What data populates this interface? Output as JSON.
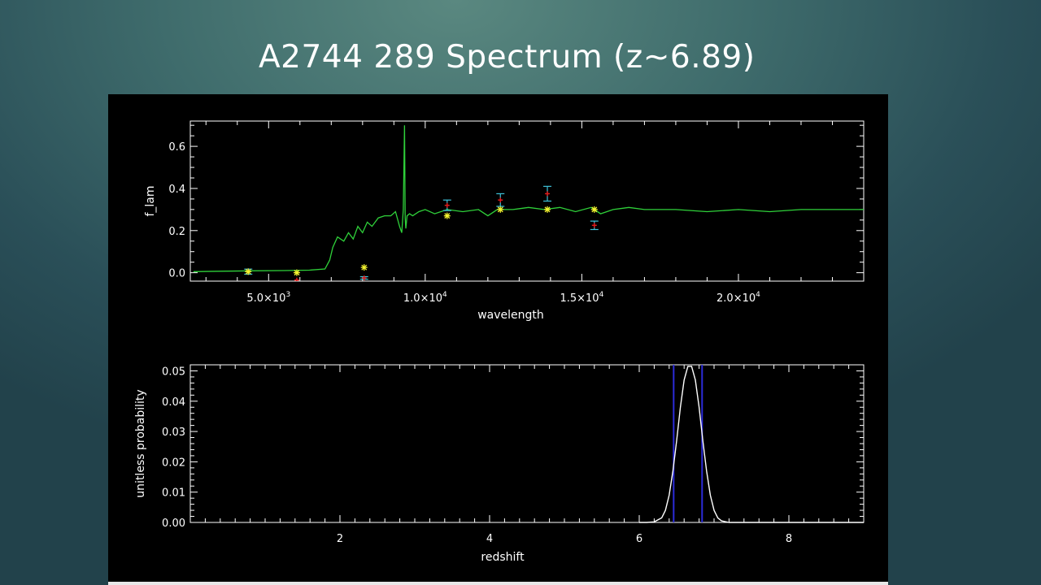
{
  "slide": {
    "title": "A2744 289 Spectrum (z~6.89)"
  },
  "colors": {
    "background_light": "#5a8880",
    "background_dark": "#22424b",
    "plot_background": "#000000",
    "axes": "#ffffff",
    "spectrum": "#2fd13a",
    "observed_points": "#e01a1a",
    "error_bars": "#3ec1d8",
    "model_points": "#f4f430",
    "pdf_curve": "#ffffff",
    "bounds": "#2b2bd8"
  },
  "chart_data": [
    {
      "type": "line",
      "xlabel": "wavelength",
      "ylabel": "f_lam",
      "xlim": [
        2500,
        24000
      ],
      "ylim": [
        -0.04,
        0.72
      ],
      "xticks": [
        {
          "value": 5000,
          "mant": "5.0",
          "exp": "3"
        },
        {
          "value": 10000,
          "mant": "1.0",
          "exp": "4"
        },
        {
          "value": 15000,
          "mant": "1.5",
          "exp": "4"
        },
        {
          "value": 20000,
          "mant": "2.0",
          "exp": "4"
        }
      ],
      "yticks": [
        "0.0",
        "0.2",
        "0.4",
        "0.6"
      ],
      "series": [
        {
          "kind": "model_spectrum",
          "x": [
            2600,
            3500,
            4500,
            5500,
            6300,
            6800,
            6950,
            7050,
            7200,
            7400,
            7550,
            7700,
            7850,
            8000,
            8150,
            8300,
            8500,
            8700,
            8900,
            9050,
            9180,
            9250,
            9300,
            9340,
            9360,
            9380,
            9420,
            9500,
            9600,
            9800,
            10000,
            10300,
            10700,
            11200,
            11700,
            12000,
            12300,
            12800,
            13300,
            13800,
            14300,
            14800,
            15300,
            15600,
            16000,
            16500,
            17000,
            18000,
            19000,
            20000,
            21000,
            22000,
            23000,
            24000
          ],
          "y": [
            0.005,
            0.007,
            0.009,
            0.01,
            0.012,
            0.018,
            0.06,
            0.12,
            0.17,
            0.15,
            0.19,
            0.16,
            0.22,
            0.19,
            0.24,
            0.22,
            0.26,
            0.27,
            0.27,
            0.29,
            0.22,
            0.19,
            0.3,
            0.7,
            0.26,
            0.21,
            0.27,
            0.28,
            0.27,
            0.29,
            0.3,
            0.28,
            0.3,
            0.29,
            0.3,
            0.27,
            0.3,
            0.3,
            0.31,
            0.3,
            0.31,
            0.29,
            0.31,
            0.28,
            0.3,
            0.31,
            0.3,
            0.3,
            0.29,
            0.3,
            0.29,
            0.3,
            0.3,
            0.3
          ]
        },
        {
          "kind": "observed_photometry",
          "points": [
            {
              "x": 4350,
              "y": 0.005,
              "err": 0.012
            },
            {
              "x": 5900,
              "y": -0.035,
              "err": 0.0
            },
            {
              "x": 8050,
              "y": -0.025,
              "err": 0.006
            },
            {
              "x": 10700,
              "y": 0.32,
              "err": 0.025
            },
            {
              "x": 12400,
              "y": 0.345,
              "err": 0.03
            },
            {
              "x": 13900,
              "y": 0.375,
              "err": 0.035
            },
            {
              "x": 15400,
              "y": 0.225,
              "err": 0.02
            }
          ]
        },
        {
          "kind": "model_photometry",
          "points": [
            {
              "x": 4350,
              "y": 0.005
            },
            {
              "x": 5900,
              "y": 0.0
            },
            {
              "x": 8050,
              "y": 0.025
            },
            {
              "x": 10700,
              "y": 0.27
            },
            {
              "x": 12400,
              "y": 0.3
            },
            {
              "x": 13900,
              "y": 0.3
            },
            {
              "x": 15400,
              "y": 0.3
            }
          ]
        }
      ]
    },
    {
      "type": "line",
      "xlabel": "redshift",
      "ylabel": "unitless probability",
      "xlim": [
        0,
        9
      ],
      "ylim": [
        0,
        0.052
      ],
      "xticks": [
        "2",
        "4",
        "6",
        "8"
      ],
      "yticks": [
        "0.00",
        "0.01",
        "0.02",
        "0.03",
        "0.04",
        "0.05"
      ],
      "pdf": {
        "x": [
          6.0,
          6.1,
          6.2,
          6.3,
          6.35,
          6.4,
          6.45,
          6.5,
          6.55,
          6.6,
          6.65,
          6.7,
          6.75,
          6.8,
          6.85,
          6.9,
          6.95,
          7.0,
          7.05,
          7.1,
          7.2,
          7.3,
          9.0
        ],
        "y": [
          0.0,
          0.0,
          0.0002,
          0.0015,
          0.004,
          0.009,
          0.017,
          0.027,
          0.038,
          0.047,
          0.0515,
          0.0515,
          0.047,
          0.038,
          0.027,
          0.017,
          0.009,
          0.004,
          0.0015,
          0.0005,
          0.0,
          0.0,
          0.0
        ]
      },
      "bounds": [
        6.46,
        6.84
      ]
    }
  ]
}
